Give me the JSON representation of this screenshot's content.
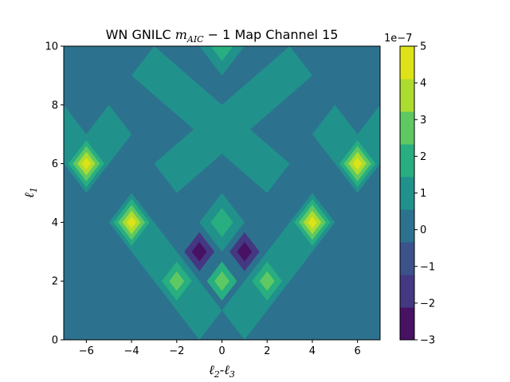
{
  "chart_data": {
    "type": "heatmap",
    "title_parts": [
      "WN GNILC ",
      "m",
      "AIC",
      " − 1 Map Channel 15"
    ],
    "xlabel_parts": [
      "ℓ",
      "2",
      "-",
      "ℓ",
      "3"
    ],
    "ylabel_parts": [
      "ℓ",
      "1"
    ],
    "xlim": [
      -7,
      7
    ],
    "ylim": [
      0,
      10
    ],
    "xticks": [
      -6,
      -4,
      -2,
      0,
      2,
      4,
      6
    ],
    "xtick_labels": [
      "−6",
      "−4",
      "−2",
      "0",
      "2",
      "4",
      "6"
    ],
    "yticks": [
      0,
      2,
      4,
      6,
      8,
      10
    ],
    "ytick_labels": [
      "0",
      "2",
      "4",
      "6",
      "8",
      "10"
    ],
    "colorbar": {
      "levels": [
        -3,
        -2,
        -1,
        0,
        1,
        2,
        3,
        4,
        5
      ],
      "tick_labels": [
        "−3",
        "−2",
        "−1",
        "0",
        "1",
        "2",
        "3",
        "4",
        "5"
      ],
      "colors": [
        "#471164",
        "#453882",
        "#3b528b",
        "#2c728e",
        "#21918c",
        "#28ae80",
        "#5ec962",
        "#addc30",
        "#dde318"
      ],
      "offset_label": "1e−7"
    },
    "background_level": 0,
    "regions": [
      {
        "name": "x-band-left",
        "level": 1,
        "vertices": [
          [
            -4,
            9
          ],
          [
            -3,
            10
          ],
          [
            3,
            6
          ],
          [
            2,
            5
          ]
        ]
      },
      {
        "name": "x-band-right",
        "level": 1,
        "vertices": [
          [
            4,
            9
          ],
          [
            3,
            10
          ],
          [
            -3,
            6
          ],
          [
            -2,
            5
          ]
        ]
      },
      {
        "name": "top-center",
        "level": 1,
        "vertices": [
          [
            -1,
            10
          ],
          [
            1,
            10
          ],
          [
            0,
            9
          ]
        ]
      },
      {
        "name": "v-arm-left",
        "level": 1,
        "vertices": [
          [
            -5,
            4
          ],
          [
            -4,
            5
          ],
          [
            0,
            1
          ],
          [
            -1,
            0
          ]
        ]
      },
      {
        "name": "v-arm-right",
        "level": 1,
        "vertices": [
          [
            5,
            4
          ],
          [
            4,
            5
          ],
          [
            0,
            1
          ],
          [
            1,
            0
          ]
        ]
      },
      {
        "name": "center-diamond",
        "level": 1,
        "vertices": [
          [
            0,
            5
          ],
          [
            1,
            4
          ],
          [
            0,
            3
          ],
          [
            -1,
            4
          ]
        ]
      },
      {
        "name": "left-wing",
        "level": 1,
        "vertices": [
          [
            -7,
            8
          ],
          [
            -6,
            7
          ],
          [
            -5,
            8
          ],
          [
            -4,
            7
          ],
          [
            -6,
            5
          ],
          [
            -7,
            6
          ]
        ]
      },
      {
        "name": "right-wing",
        "level": 1,
        "vertices": [
          [
            7,
            8
          ],
          [
            6,
            7
          ],
          [
            5,
            8
          ],
          [
            4,
            7
          ],
          [
            6,
            5
          ],
          [
            7,
            6
          ]
        ]
      }
    ],
    "peaks": [
      {
        "x": -6,
        "y": 6,
        "level": 5,
        "base": 1
      },
      {
        "x": 6,
        "y": 6,
        "level": 5,
        "base": 1
      },
      {
        "x": -4,
        "y": 4,
        "level": 5,
        "base": 1
      },
      {
        "x": 4,
        "y": 4,
        "level": 5,
        "base": 1
      },
      {
        "x": 0,
        "y": 2,
        "level": 3,
        "base": 1
      },
      {
        "x": -2,
        "y": 2,
        "level": 3,
        "base": 1
      },
      {
        "x": 2,
        "y": 2,
        "level": 3,
        "base": 1
      },
      {
        "x": 0,
        "y": 4,
        "level": 2,
        "base": 1
      },
      {
        "x": 0,
        "y": 10,
        "level": 2,
        "base": 1
      }
    ],
    "troughs": [
      {
        "x": -1,
        "y": 3,
        "level": -3,
        "base": -1
      },
      {
        "x": 1,
        "y": 3,
        "level": -3,
        "base": -1
      },
      {
        "x": -3,
        "y": 7,
        "level": -1,
        "base": -1
      },
      {
        "x": 3,
        "y": 7,
        "level": -1,
        "base": -1
      }
    ]
  }
}
